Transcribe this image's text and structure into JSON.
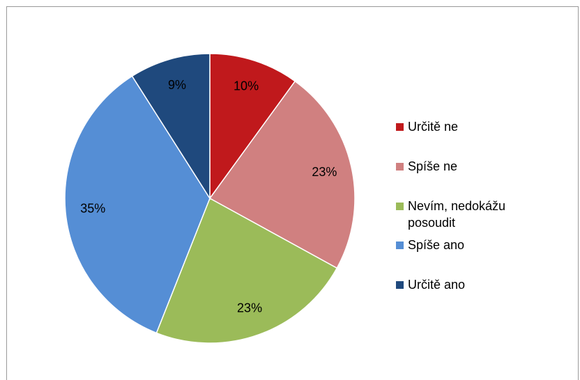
{
  "chart_data": {
    "type": "pie",
    "categories": [
      "Určitě ne",
      "Spíše ne",
      "Nevím, nedokážu posoudit",
      "Spíše ano",
      "Určitě ano"
    ],
    "values": [
      10,
      23,
      23,
      35,
      9
    ],
    "value_labels": [
      "10%",
      "23%",
      "23%",
      "35%",
      "9%"
    ],
    "colors": [
      "#c0191c",
      "#d08080",
      "#9bbb59",
      "#558ed5",
      "#1f497d"
    ],
    "legend": "right"
  }
}
